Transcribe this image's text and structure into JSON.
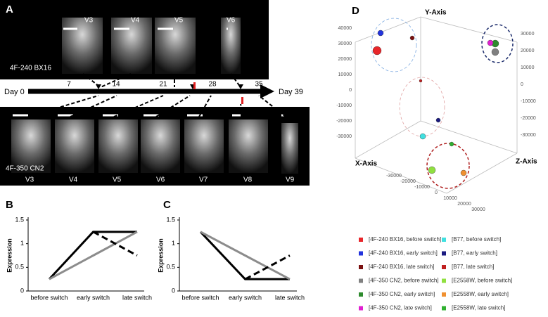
{
  "panel_labels": [
    "A",
    "B",
    "C",
    "D"
  ],
  "panel_a": {
    "top_stages": [
      "V3",
      "V4",
      "V5",
      "V6"
    ],
    "top_line": "4F-240 BX16",
    "bottom_stages": [
      "V3",
      "V4",
      "V5",
      "V6",
      "V7",
      "V8",
      "V9"
    ],
    "bottom_line": "4F-350 CN2",
    "timeline": {
      "start": "Day 0",
      "end": "Day 39",
      "days": [
        "7",
        "14",
        "21",
        "28",
        "35"
      ]
    }
  },
  "chart_data": [
    {
      "type": "line",
      "ylabel": "Expression",
      "categories": [
        "before switch",
        "early switch",
        "late switch"
      ],
      "ylim": [
        0,
        1.5
      ],
      "yticks": [
        0,
        0.5,
        1,
        1.5
      ],
      "series": [
        {
          "color": "#000000",
          "values": [
            0.25,
            1.25,
            1.25
          ]
        },
        {
          "color": "#8c8c8c",
          "values": [
            0.25,
            0.75,
            1.25
          ]
        },
        {
          "color": "#000000",
          "dash": true,
          "values": [
            null,
            1.25,
            0.75
          ]
        }
      ]
    },
    {
      "type": "line",
      "ylabel": "Expression",
      "categories": [
        "before switch",
        "early switch",
        "late switch"
      ],
      "ylim": [
        0,
        1.5
      ],
      "yticks": [
        0,
        0.5,
        1,
        1.5
      ],
      "series": [
        {
          "color": "#000000",
          "values": [
            1.25,
            0.25,
            0.25
          ]
        },
        {
          "color": "#8c8c8c",
          "values": [
            1.25,
            0.75,
            0.25
          ]
        },
        {
          "color": "#000000",
          "dash": true,
          "values": [
            null,
            0.25,
            0.75
          ]
        }
      ]
    }
  ],
  "panel_d": {
    "axes": {
      "y": "Y-Axis",
      "x": "X-Axis",
      "z": "Z-Axis"
    },
    "left_ticks": [
      "40000",
      "30000",
      "20000",
      "10000",
      "0",
      "-10000",
      "-20000",
      "-30000"
    ],
    "right_ticks": [
      "30000",
      "20000",
      "10000",
      "0",
      "-10000",
      "-20000",
      "-30000"
    ],
    "bottom_ticks": [
      "-30000",
      "-20000",
      "-10000",
      "0",
      "10000",
      "20000",
      "30000"
    ],
    "legend": [
      {
        "label": "[4F-240 BX16, before switch]",
        "color": "#e8262b"
      },
      {
        "label": "[4F-240 BX16, early switch]",
        "color": "#2233dd"
      },
      {
        "label": "[4F-240 BX16, late switch]",
        "color": "#7a1010"
      },
      {
        "label": "[4F-350 CN2, before switch]",
        "color": "#808080"
      },
      {
        "label": "[4F-350 CN2, early switch]",
        "color": "#2e8b2e"
      },
      {
        "label": "[4F-350 CN2, late switch]",
        "color": "#e020d0"
      },
      {
        "label": "[B77, before switch]",
        "color": "#40e0e0"
      },
      {
        "label": "[B77, early switch]",
        "color": "#1a1a80"
      },
      {
        "label": "[B77, late switch]",
        "color": "#c02020"
      },
      {
        "label": "[E2558W, before switch]",
        "color": "#90e040"
      },
      {
        "label": "[E2558W, early switch]",
        "color": "#f09030"
      },
      {
        "label": "[E2558W, late switch]",
        "color": "#30b030"
      }
    ]
  }
}
